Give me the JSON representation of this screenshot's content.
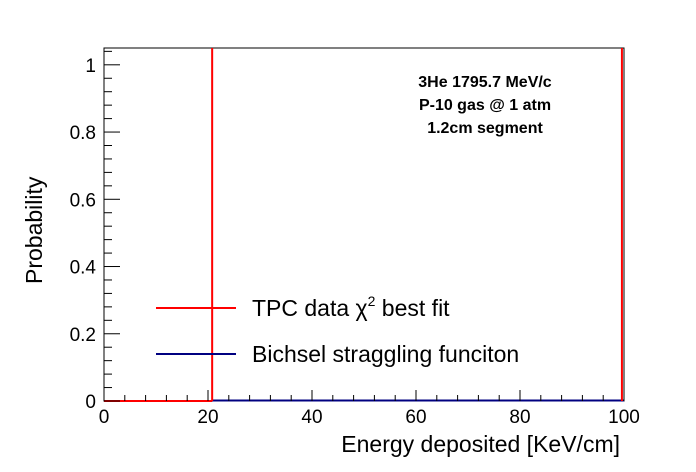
{
  "chart_data": {
    "type": "line",
    "xlabel": "Energy deposited [KeV/cm]",
    "ylabel": "Probability",
    "xlim": [
      0,
      100
    ],
    "ylim": [
      0,
      1.05
    ],
    "grid": false,
    "x_ticks": [
      "0",
      "20",
      "40",
      "60",
      "80",
      "100"
    ],
    "x_tick_values": [
      0,
      20,
      40,
      60,
      80,
      100
    ],
    "y_ticks": [
      "0",
      "0.2",
      "0.4",
      "0.6",
      "0.8",
      "1"
    ],
    "y_tick_values": [
      0,
      0.2,
      0.4,
      0.6,
      0.8,
      1
    ],
    "annotation": [
      "3He 1795.7 MeV/c",
      "P-10 gas @ 1 atm",
      "1.2cm segment"
    ],
    "legend_position": "bottom-left",
    "series": [
      {
        "name": "TPC data χ2 best fit",
        "legend_main": "TPC data ",
        "legend_chi": "χ",
        "legend_sup": "2",
        "legend_rest": " best fit",
        "color": "#ff0000",
        "x": [
          0,
          20.8,
          20.8,
          20.8,
          100
        ],
        "y": [
          0,
          0,
          1.05,
          0,
          0
        ],
        "extra_vline": 99.6
      },
      {
        "name": "Bichsel straggling funciton",
        "color": "#000080",
        "x": [
          20.8,
          100
        ],
        "y": [
          0,
          0
        ]
      }
    ]
  }
}
